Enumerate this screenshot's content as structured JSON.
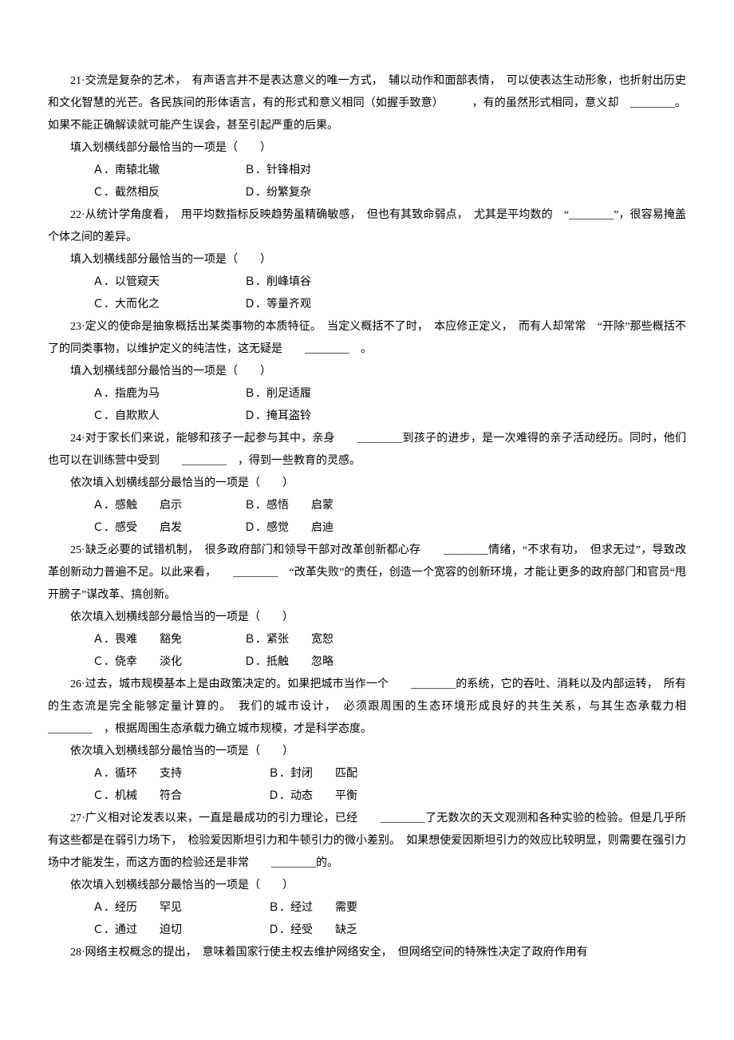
{
  "text_color": "#000000",
  "bg_color": "#ffffff",
  "font_size_pt": 10.5,
  "line_height": 2.0,
  "questions": [
    {
      "num": "21",
      "stem": "·交流是复杂的艺术，　有声语言并不是表达意义的唯一方式，　辅以动作和面部表情，　可以使表达生动形象，也折射出历史和文化智慧的光芒。各民族间的形体语言，有的形式和意义相同（如握手致意）　　　，有的虽然形式相同，意义却　________。如果不能正确解读就可能产生误会，甚至引起严重的后果。",
      "prompt": "填入划横线部分最恰当的一项是（　　）",
      "opts": [
        "Ａ．南辕北辙",
        "Ｂ．针锋相对",
        "Ｃ．截然相反",
        "Ｄ．纷繁复杂"
      ],
      "layout": "2x2"
    },
    {
      "num": "22",
      "stem": "·从统计学角度看，　用平均数指标反映趋势虽精确敏感，　但也有其致命弱点，　尤其是平均数的　“________”，很容易掩盖个体之间的差异。",
      "prompt": "填入划横线部分最恰当的一项是（　　）",
      "opts": [
        "Ａ．以管窥天",
        "Ｂ．削峰填谷",
        "Ｃ．大而化之",
        "Ｄ．等量齐观"
      ],
      "layout": "2x2"
    },
    {
      "num": "23",
      "stem": "·定义的使命是抽象概括出某类事物的本质特征。　当定义概括不了时，　本应修正定义，　而有人却常常　“开除”那些概括不了的同类事物，以维护定义的纯洁性，这无疑是　　________　。",
      "prompt": "填入划横线部分最恰当的一项是（　　）",
      "opts": [
        "Ａ．指鹿为马",
        "Ｂ．削足适履",
        "Ｃ．自欺欺人",
        "Ｄ．掩耳盗铃"
      ],
      "layout": "2x2"
    },
    {
      "num": "24",
      "stem": "·对于家长们来说，能够和孩子一起参与其中，亲身　　________到孩子的进步，是一次难得的亲子活动经历。同时，他们也可以在训练营中受到　　________　，得到一些教育的灵感。",
      "prompt": "依次填入划横线部分最恰当的一项是（　　）",
      "opts": [
        "Ａ．感触　　启示",
        "Ｂ．感悟　　启蒙",
        "Ｃ．感受　　启发",
        "Ｄ．感觉　　启迪"
      ],
      "layout": "2x2"
    },
    {
      "num": "25",
      "stem": "·缺乏必要的试错机制，　很多政府部门和领导干部对改革创新都心存　　________情绪，“不求有功，　但求无过”，导致改革创新动力普遍不足。以此来看，　　________　“改革失败”的责任，创造一个宽容的创新环境，才能让更多的政府部门和官员“甩开膀子”谋改革、搞创新。",
      "prompt": "依次填入划横线部分最恰当的一项是（　　）",
      "opts": [
        "Ａ．畏难　　豁免",
        "Ｂ．紧张　　宽恕",
        "Ｃ．侥幸　　淡化",
        "Ｄ．抵触　　忽略"
      ],
      "layout": "2x2"
    },
    {
      "num": "26",
      "stem": "·过去，城市规模基本上是由政策决定的。如果把城市当作一个　　________的系统，它的吞吐、消耗以及内部运转，　所有的生态流是完全能够定量计算的。　我们的城市设计，　必须跟周围的生态环境形成良好的共生关系，与其生态承载力相　________　，根据周围生态承载力确立城市规模，才是科学态度。",
      "prompt": "依次填入划横线部分最恰当的一项是（　　）",
      "opts": [
        "Ａ．循环　　支持",
        "Ｂ．封闭　　匹配",
        "Ｃ．机械　　符合",
        "Ｄ．动态　　平衡"
      ],
      "layout": "2x2b"
    },
    {
      "num": "27",
      "stem": "·广义相对论发表以来，一直是最成功的引力理论，已经　　________了无数次的天文观测和各种实验的检验。但是几乎所有这些都是在弱引力场下，　检验爱因斯坦引力和牛顿引力的微小差别。　如果想使爱因斯坦引力的效应比较明显，则需要在强引力场中才能发生，而这方面的检验还是非常　　________的。",
      "prompt": "依次填入划横线部分最恰当的一项是（　　）",
      "opts": [
        "Ａ．经历　　罕见",
        "Ｂ．经过　　需要",
        "Ｃ．通过　　迫切",
        "Ｄ．经受　　缺乏"
      ],
      "layout": "2x2b"
    },
    {
      "num": "28",
      "stem": "·网络主权概念的提出，　意味着国家行使主权去维护网络安全，　但网络空间的特殊性决定了政府作用有",
      "prompt": "",
      "opts": [],
      "layout": ""
    }
  ]
}
